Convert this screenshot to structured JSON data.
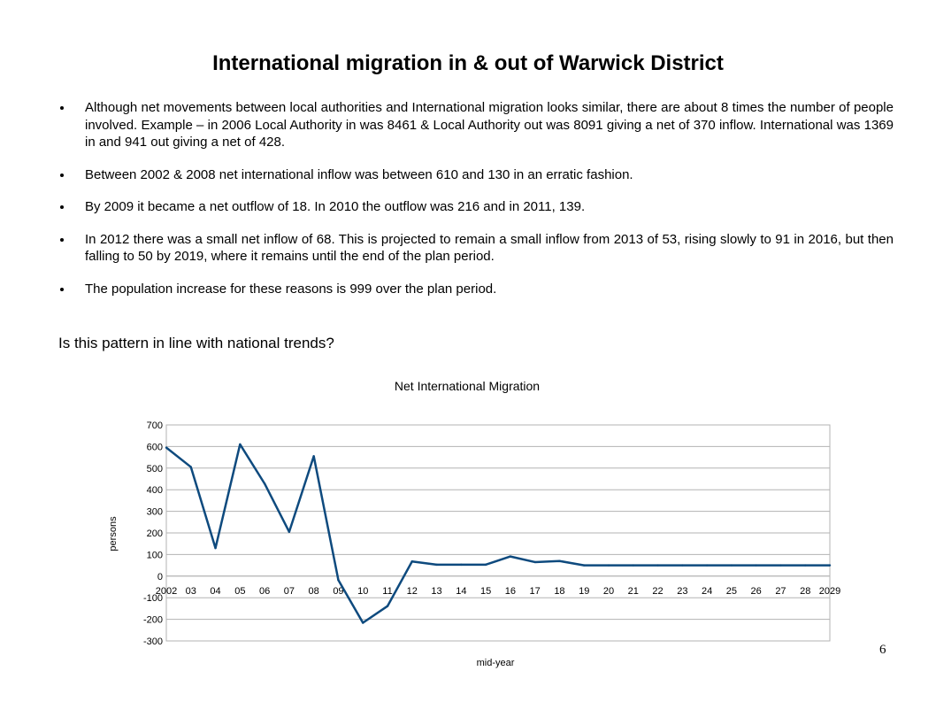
{
  "slide": {
    "title": "International migration in & out of Warwick District",
    "bullets": [
      "Although net movements between local authorities and International migration looks similar, there are about 8 times the number of people involved. Example – in 2006 Local Authority in was 8461 & Local Authority out was 8091 giving a net of 370 inflow. International was 1369 in and 941 out giving a net of 428.",
      "Between 2002 & 2008 net international inflow was between 610 and 130 in an erratic fashion.",
      "By 2009 it became a net outflow of 18. In 2010 the outflow was 216 and in 2011, 139.",
      "In 2012 there was a small net inflow of 68. This is projected to remain a small inflow from 2013 of 53, rising slowly to 91 in 2016, but then falling to 50 by 2019, where it remains until the end of the plan period.",
      "The population increase for these reasons is 999 over the plan period."
    ],
    "question": "Is this pattern in line with national trends?",
    "page_number": "6"
  },
  "chart_data": {
    "type": "line",
    "title": "Net International Migration",
    "xlabel": "mid-year",
    "ylabel": "persons",
    "categories": [
      "2002",
      "03",
      "04",
      "05",
      "06",
      "07",
      "08",
      "09",
      "10",
      "11",
      "12",
      "13",
      "14",
      "15",
      "16",
      "17",
      "18",
      "19",
      "20",
      "21",
      "22",
      "23",
      "24",
      "25",
      "26",
      "27",
      "28",
      "2029"
    ],
    "series": [
      {
        "values": [
          595,
          505,
          130,
          610,
          428,
          205,
          555,
          -18,
          -216,
          -139,
          68,
          53,
          53,
          53,
          91,
          65,
          70,
          50,
          50,
          50,
          50,
          50,
          50,
          50,
          50,
          50,
          50,
          50
        ],
        "color": "#0e4a7e"
      }
    ],
    "ylim": [
      -300,
      700
    ],
    "yticks": [
      700,
      600,
      500,
      400,
      300,
      200,
      100,
      0,
      -100,
      -200,
      -300
    ],
    "grid": true,
    "legend": "none"
  }
}
